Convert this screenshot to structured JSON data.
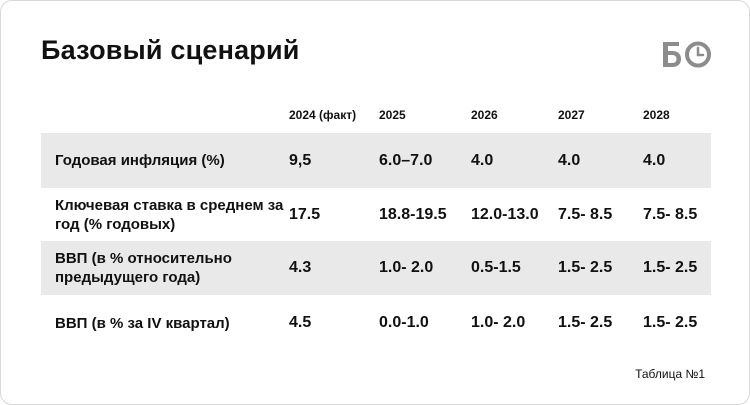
{
  "title": "Базовый сценарий",
  "logo_text": "БО",
  "table": {
    "headers": [
      "",
      "2024 (факт)",
      "2025",
      "2026",
      "2027",
      "2028"
    ],
    "rows": [
      {
        "label": "Годовая инфляция (%)",
        "values": [
          "9,5",
          "6.0–7.0",
          "4.0",
          "4.0",
          "4.0"
        ]
      },
      {
        "label": "Ключевая ставка в среднем за год  (% годовых)",
        "values": [
          "17.5",
          "18.8-19.5",
          "12.0-13.0",
          "7.5- 8.5",
          "7.5- 8.5"
        ]
      },
      {
        "label": "ВВП (в % относительно предыдущего года)",
        "values": [
          "4.3",
          "1.0- 2.0",
          "0.5-1.5",
          "1.5- 2.5",
          "1.5- 2.5"
        ]
      },
      {
        "label": "ВВП (в % за IV квартал)",
        "values": [
          "4.5",
          "0.0-1.0",
          "1.0- 2.0",
          "1.5- 2.5",
          "1.5- 2.5"
        ]
      }
    ]
  },
  "caption": "Таблица №1",
  "colors": {
    "row_shade": "#e9e9e9",
    "logo": "#8c8c8c",
    "text": "#111111"
  }
}
